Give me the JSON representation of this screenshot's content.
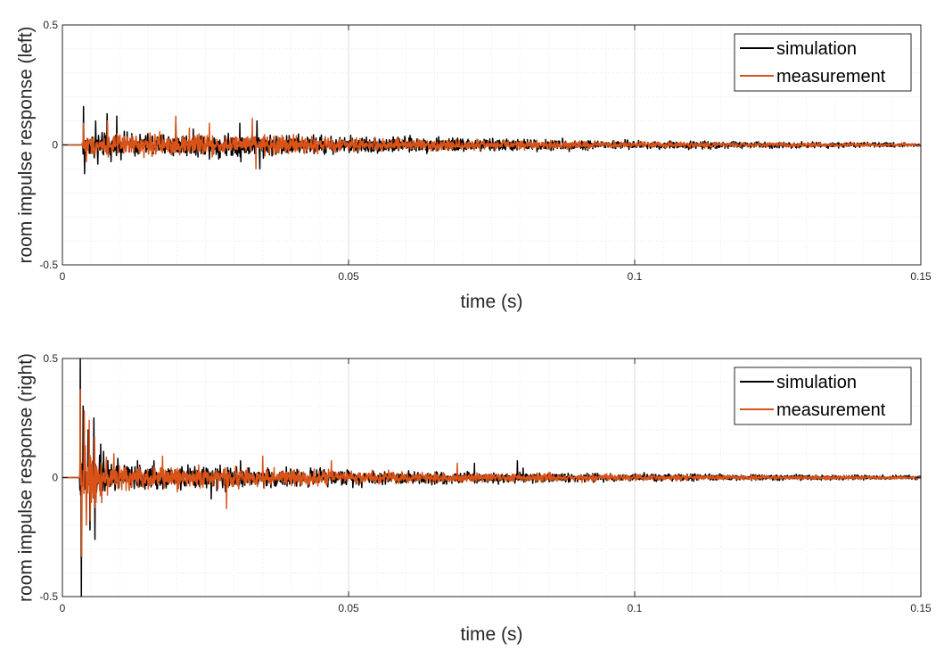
{
  "colors": {
    "simulation": "#000000",
    "measurement": "#D95319",
    "grid": "#e6e6e6",
    "axis": "#262626"
  },
  "chart_data": [
    {
      "type": "line",
      "xlabel": "time (s)",
      "ylabel": "room impulse response (left)",
      "xlim": [
        0,
        0.15
      ],
      "ylim": [
        -0.5,
        0.5
      ],
      "xticks": [
        0,
        0.05,
        0.1,
        0.15
      ],
      "xtick_labels": [
        "0",
        "0.05",
        "0.1",
        "0.15"
      ],
      "yticks": [
        -0.5,
        0,
        0.5
      ],
      "ytick_labels": [
        "-0.5",
        "0",
        "0.5"
      ],
      "grid": true,
      "minor_grid": true,
      "legend_position": "top-right",
      "series": [
        {
          "name": "simulation",
          "color": "#000000",
          "onset": 0.0035,
          "peaks": [
            [
              0.0037,
              0.16
            ],
            [
              0.0039,
              -0.12
            ],
            [
              0.0058,
              0.1
            ],
            [
              0.0062,
              -0.08
            ],
            [
              0.0078,
              0.13
            ],
            [
              0.0085,
              -0.07
            ],
            [
              0.0095,
              0.12
            ],
            [
              0.0198,
              0.1
            ],
            [
              0.031,
              0.09
            ],
            [
              0.0312,
              -0.07
            ],
            [
              0.034,
              0.1
            ],
            [
              0.0345,
              -0.1
            ]
          ],
          "envelope": [
            [
              0.004,
              0.06
            ],
            [
              0.02,
              0.06
            ],
            [
              0.035,
              0.055
            ],
            [
              0.05,
              0.045
            ],
            [
              0.07,
              0.035
            ],
            [
              0.1,
              0.022
            ],
            [
              0.15,
              0.01
            ]
          ]
        },
        {
          "name": "measurement",
          "color": "#D95319",
          "onset": 0.0035,
          "peaks": [
            [
              0.0037,
              0.09
            ],
            [
              0.0042,
              -0.07
            ],
            [
              0.0079,
              0.1
            ],
            [
              0.0198,
              0.12
            ],
            [
              0.0222,
              0.07
            ],
            [
              0.0257,
              0.09
            ],
            [
              0.0262,
              -0.05
            ],
            [
              0.0332,
              0.11
            ],
            [
              0.0338,
              -0.1
            ]
          ],
          "envelope": [
            [
              0.004,
              0.05
            ],
            [
              0.02,
              0.055
            ],
            [
              0.035,
              0.05
            ],
            [
              0.05,
              0.035
            ],
            [
              0.07,
              0.025
            ],
            [
              0.1,
              0.016
            ],
            [
              0.15,
              0.008
            ]
          ]
        }
      ]
    },
    {
      "type": "line",
      "xlabel": "time (s)",
      "ylabel": "room impulse response (right)",
      "xlim": [
        0,
        0.15
      ],
      "ylim": [
        -0.5,
        0.5
      ],
      "xticks": [
        0,
        0.05,
        0.1,
        0.15
      ],
      "xtick_labels": [
        "0",
        "0.05",
        "0.1",
        "0.15"
      ],
      "yticks": [
        -0.5,
        0,
        0.5
      ],
      "ytick_labels": [
        "-0.5",
        "0",
        "0.5"
      ],
      "grid": true,
      "minor_grid": true,
      "legend_position": "top-right",
      "series": [
        {
          "name": "simulation",
          "color": "#000000",
          "onset": 0.003,
          "peaks": [
            [
              0.0031,
              0.5
            ],
            [
              0.0033,
              -0.5
            ],
            [
              0.0036,
              0.3
            ],
            [
              0.0045,
              0.2
            ],
            [
              0.0048,
              -0.22
            ],
            [
              0.0055,
              0.25
            ],
            [
              0.0057,
              -0.26
            ],
            [
              0.0067,
              0.14
            ],
            [
              0.0072,
              0.11
            ],
            [
              0.0097,
              0.08
            ],
            [
              0.016,
              0.07
            ],
            [
              0.026,
              -0.09
            ],
            [
              0.0285,
              -0.06
            ],
            [
              0.0311,
              0.07
            ],
            [
              0.072,
              0.06
            ],
            [
              0.0795,
              0.07
            ],
            [
              0.0805,
              0.04
            ]
          ],
          "envelope": [
            [
              0.0035,
              0.12
            ],
            [
              0.01,
              0.07
            ],
            [
              0.02,
              0.06
            ],
            [
              0.035,
              0.05
            ],
            [
              0.05,
              0.04
            ],
            [
              0.07,
              0.03
            ],
            [
              0.1,
              0.02
            ],
            [
              0.15,
              0.01
            ]
          ]
        },
        {
          "name": "measurement",
          "color": "#D95319",
          "onset": 0.003,
          "peaks": [
            [
              0.0031,
              0.37
            ],
            [
              0.0034,
              -0.33
            ],
            [
              0.0038,
              0.28
            ],
            [
              0.0042,
              -0.2
            ],
            [
              0.0047,
              0.24
            ],
            [
              0.0049,
              -0.18
            ],
            [
              0.0056,
              0.17
            ],
            [
              0.009,
              0.1
            ],
            [
              0.0175,
              0.09
            ],
            [
              0.0287,
              -0.13
            ],
            [
              0.035,
              0.09
            ],
            [
              0.047,
              0.07
            ],
            [
              0.069,
              0.06
            ]
          ],
          "envelope": [
            [
              0.0035,
              0.15
            ],
            [
              0.01,
              0.065
            ],
            [
              0.02,
              0.055
            ],
            [
              0.035,
              0.045
            ],
            [
              0.05,
              0.035
            ],
            [
              0.07,
              0.025
            ],
            [
              0.1,
              0.016
            ],
            [
              0.15,
              0.008
            ]
          ]
        }
      ]
    }
  ]
}
